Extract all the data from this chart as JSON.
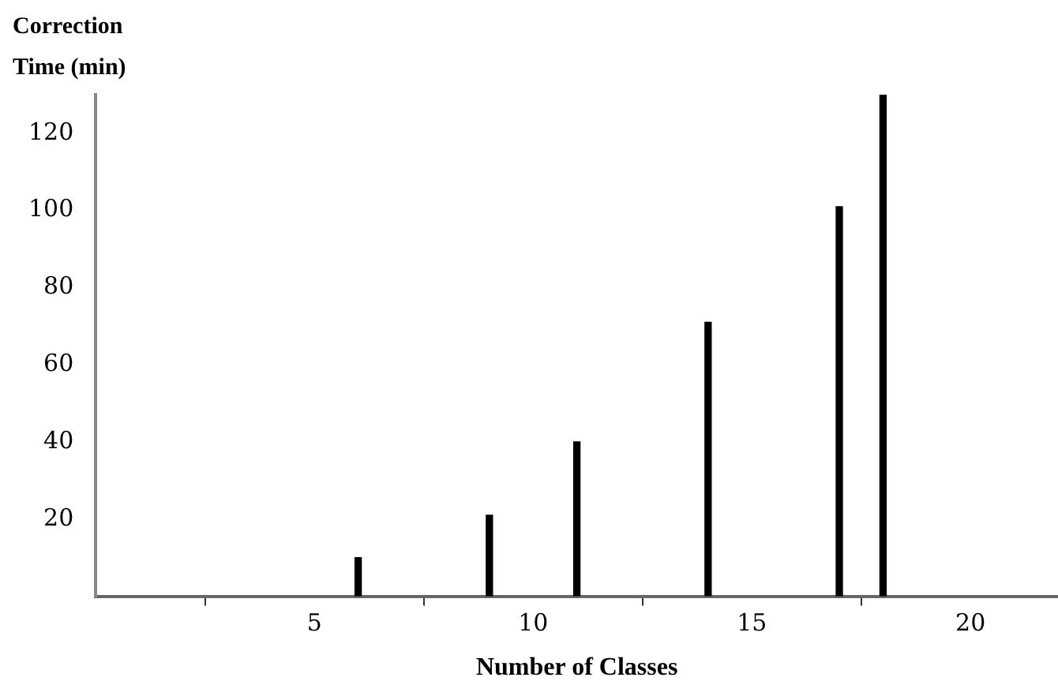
{
  "chart_data": {
    "type": "bar",
    "ylabel": "Correction Time (min)",
    "xlabel": "Number of Classes",
    "x": [
      6,
      9,
      11,
      14,
      17,
      18
    ],
    "values": [
      10,
      21,
      40,
      71,
      101,
      130
    ],
    "color": "#000000",
    "xlim": [
      0,
      22
    ],
    "xticks": [
      5,
      10,
      15,
      20
    ],
    "ylim": [
      0,
      130
    ],
    "yticks": [
      20,
      40,
      60,
      80,
      100,
      120
    ],
    "grid": false,
    "legend": false
  }
}
